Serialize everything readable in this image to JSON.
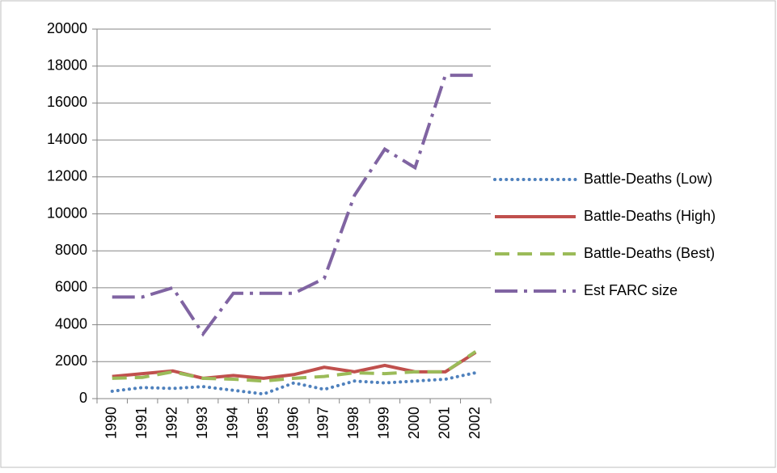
{
  "chart_data": {
    "type": "line",
    "categories": [
      "1990",
      "1991",
      "1992",
      "1993",
      "1994",
      "1995",
      "1996",
      "1997",
      "1998",
      "1999",
      "2000",
      "2001",
      "2002"
    ],
    "series": [
      {
        "name": "Battle-Deaths (Low)",
        "color": "#4f81bd",
        "style": "dotted",
        "values": [
          400,
          600,
          550,
          650,
          450,
          250,
          850,
          500,
          950,
          850,
          950,
          1050,
          1400
        ]
      },
      {
        "name": "Battle-Deaths (High)",
        "color": "#c0504d",
        "style": "solid",
        "values": [
          1200,
          1350,
          1500,
          1100,
          1250,
          1100,
          1300,
          1700,
          1450,
          1800,
          1450,
          1450,
          2500
        ]
      },
      {
        "name": "Battle-Deaths (Best)",
        "color": "#9bbb59",
        "style": "dashed",
        "values": [
          1100,
          1150,
          1450,
          1100,
          1050,
          950,
          1100,
          1200,
          1400,
          1350,
          1450,
          1450,
          2550
        ]
      },
      {
        "name": "Est FARC size",
        "color": "#8064a2",
        "style": "longdash",
        "values": [
          5500,
          5500,
          6000,
          3500,
          5700,
          5700,
          5700,
          6500,
          11000,
          13500,
          12500,
          17500,
          17500
        ]
      }
    ],
    "ylim": [
      0,
      20000
    ],
    "yticks": [
      0,
      2000,
      4000,
      6000,
      8000,
      10000,
      12000,
      14000,
      16000,
      18000,
      20000
    ],
    "grid": true,
    "legend": "right"
  }
}
